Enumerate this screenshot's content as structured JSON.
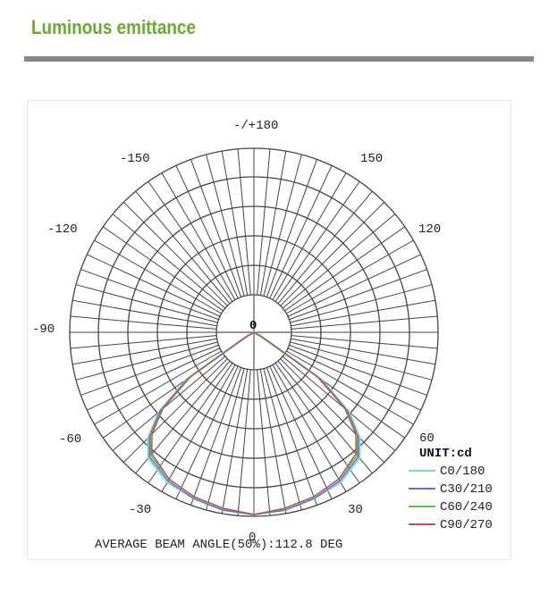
{
  "header": {
    "title": "Luminous emittance",
    "title_color": "#6aaa2f",
    "rule_color": "#888888"
  },
  "chart_data": {
    "type": "polar",
    "title": "",
    "unit_label": "UNIT:cd",
    "angle_labels": [
      {
        "text": "-/+180",
        "angle": 180
      },
      {
        "text": "-150",
        "angle": -150
      },
      {
        "text": "150",
        "angle": 150
      },
      {
        "text": "-120",
        "angle": -120
      },
      {
        "text": "120",
        "angle": 120
      },
      {
        "text": "-90",
        "angle": -90
      },
      {
        "text": "-60",
        "angle": -60
      },
      {
        "text": "60",
        "angle": 60
      },
      {
        "text": "-30",
        "angle": -30
      },
      {
        "text": "30",
        "angle": 30
      },
      {
        "text": "0",
        "angle": 0
      }
    ],
    "center_label": "0",
    "grid": {
      "radial_step_deg": 5,
      "rings": 5
    },
    "legend": [
      {
        "name": "C0/180",
        "color": "#7fd3dc"
      },
      {
        "name": "C30/210",
        "color": "#6b6bc4"
      },
      {
        "name": "C60/240",
        "color": "#5cbf4a"
      },
      {
        "name": "C90/270",
        "color": "#c0504d"
      }
    ],
    "series": [
      {
        "name": "C0/180",
        "angles": [
          -60,
          -55,
          -50,
          -45,
          -40,
          -30,
          -20,
          -10,
          0,
          10,
          20,
          30,
          40,
          45,
          50,
          55,
          60
        ],
        "relative_intensity": [
          0.05,
          0.45,
          0.68,
          0.82,
          0.9,
          0.95,
          0.97,
          0.99,
          1.0,
          0.99,
          0.97,
          0.95,
          0.9,
          0.82,
          0.68,
          0.45,
          0.05
        ]
      },
      {
        "name": "C30/210",
        "angles": [
          -60,
          -55,
          -50,
          -45,
          -40,
          -30,
          -20,
          -10,
          0,
          10,
          20,
          30,
          40,
          45,
          50,
          55,
          60
        ],
        "relative_intensity": [
          0.05,
          0.44,
          0.67,
          0.81,
          0.89,
          0.94,
          0.97,
          0.99,
          1.0,
          0.99,
          0.97,
          0.94,
          0.89,
          0.81,
          0.67,
          0.44,
          0.05
        ]
      },
      {
        "name": "C60/240",
        "angles": [
          -60,
          -55,
          -50,
          -45,
          -40,
          -30,
          -20,
          -10,
          0,
          10,
          20,
          30,
          40,
          45,
          50,
          55,
          60
        ],
        "relative_intensity": [
          0.05,
          0.43,
          0.66,
          0.8,
          0.88,
          0.93,
          0.96,
          0.98,
          1.0,
          0.98,
          0.96,
          0.93,
          0.88,
          0.8,
          0.66,
          0.43,
          0.05
        ]
      },
      {
        "name": "C90/270",
        "angles": [
          -60,
          -55,
          -50,
          -45,
          -40,
          -30,
          -20,
          -10,
          0,
          10,
          20,
          30,
          40,
          45,
          50,
          55,
          60
        ],
        "relative_intensity": [
          0.05,
          0.42,
          0.65,
          0.79,
          0.87,
          0.93,
          0.96,
          0.98,
          1.0,
          0.98,
          0.96,
          0.93,
          0.87,
          0.79,
          0.65,
          0.42,
          0.05
        ]
      }
    ],
    "footer": "AVERAGE BEAM ANGLE(50%):112.8 DEG",
    "beam_angle_deg": 112.8
  }
}
